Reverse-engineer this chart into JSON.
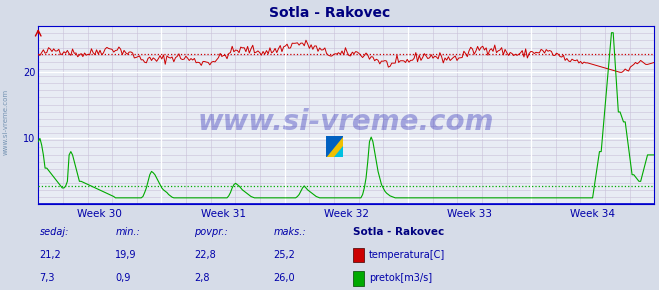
{
  "title": "Sotla - Rakovec",
  "title_color": "#000080",
  "title_fontsize": 10,
  "bg_color": "#d6dce8",
  "plot_bg_color": "#e8ecf4",
  "grid_major_color": "#ffffff",
  "grid_minor_color": "#c8d0e0",
  "axis_color": "#0000cc",
  "x_tick_labels": [
    "Week 30",
    "Week 31",
    "Week 32",
    "Week 33",
    "Week 34"
  ],
  "ylim": [
    0,
    27
  ],
  "n_points": 360,
  "temp_color": "#cc0000",
  "flow_color": "#00aa00",
  "avg_temp": 22.8,
  "avg_flow": 2.8,
  "min_temp": 19.9,
  "max_temp": 25.2,
  "cur_temp": 21.2,
  "min_flow": 0.9,
  "max_flow": 26.0,
  "cur_flow": 7.3,
  "label_color": "#0000aa",
  "legend_title": "Sotla - Rakovec",
  "legend_title_color": "#000080",
  "watermark": "www.si-vreme.com",
  "watermark_color": "#0000aa",
  "watermark_alpha": 0.3,
  "watermark_fontsize": 20,
  "side_label": "www.si-vreme.com",
  "side_label_color": "#6688aa",
  "side_label_fontsize": 5
}
